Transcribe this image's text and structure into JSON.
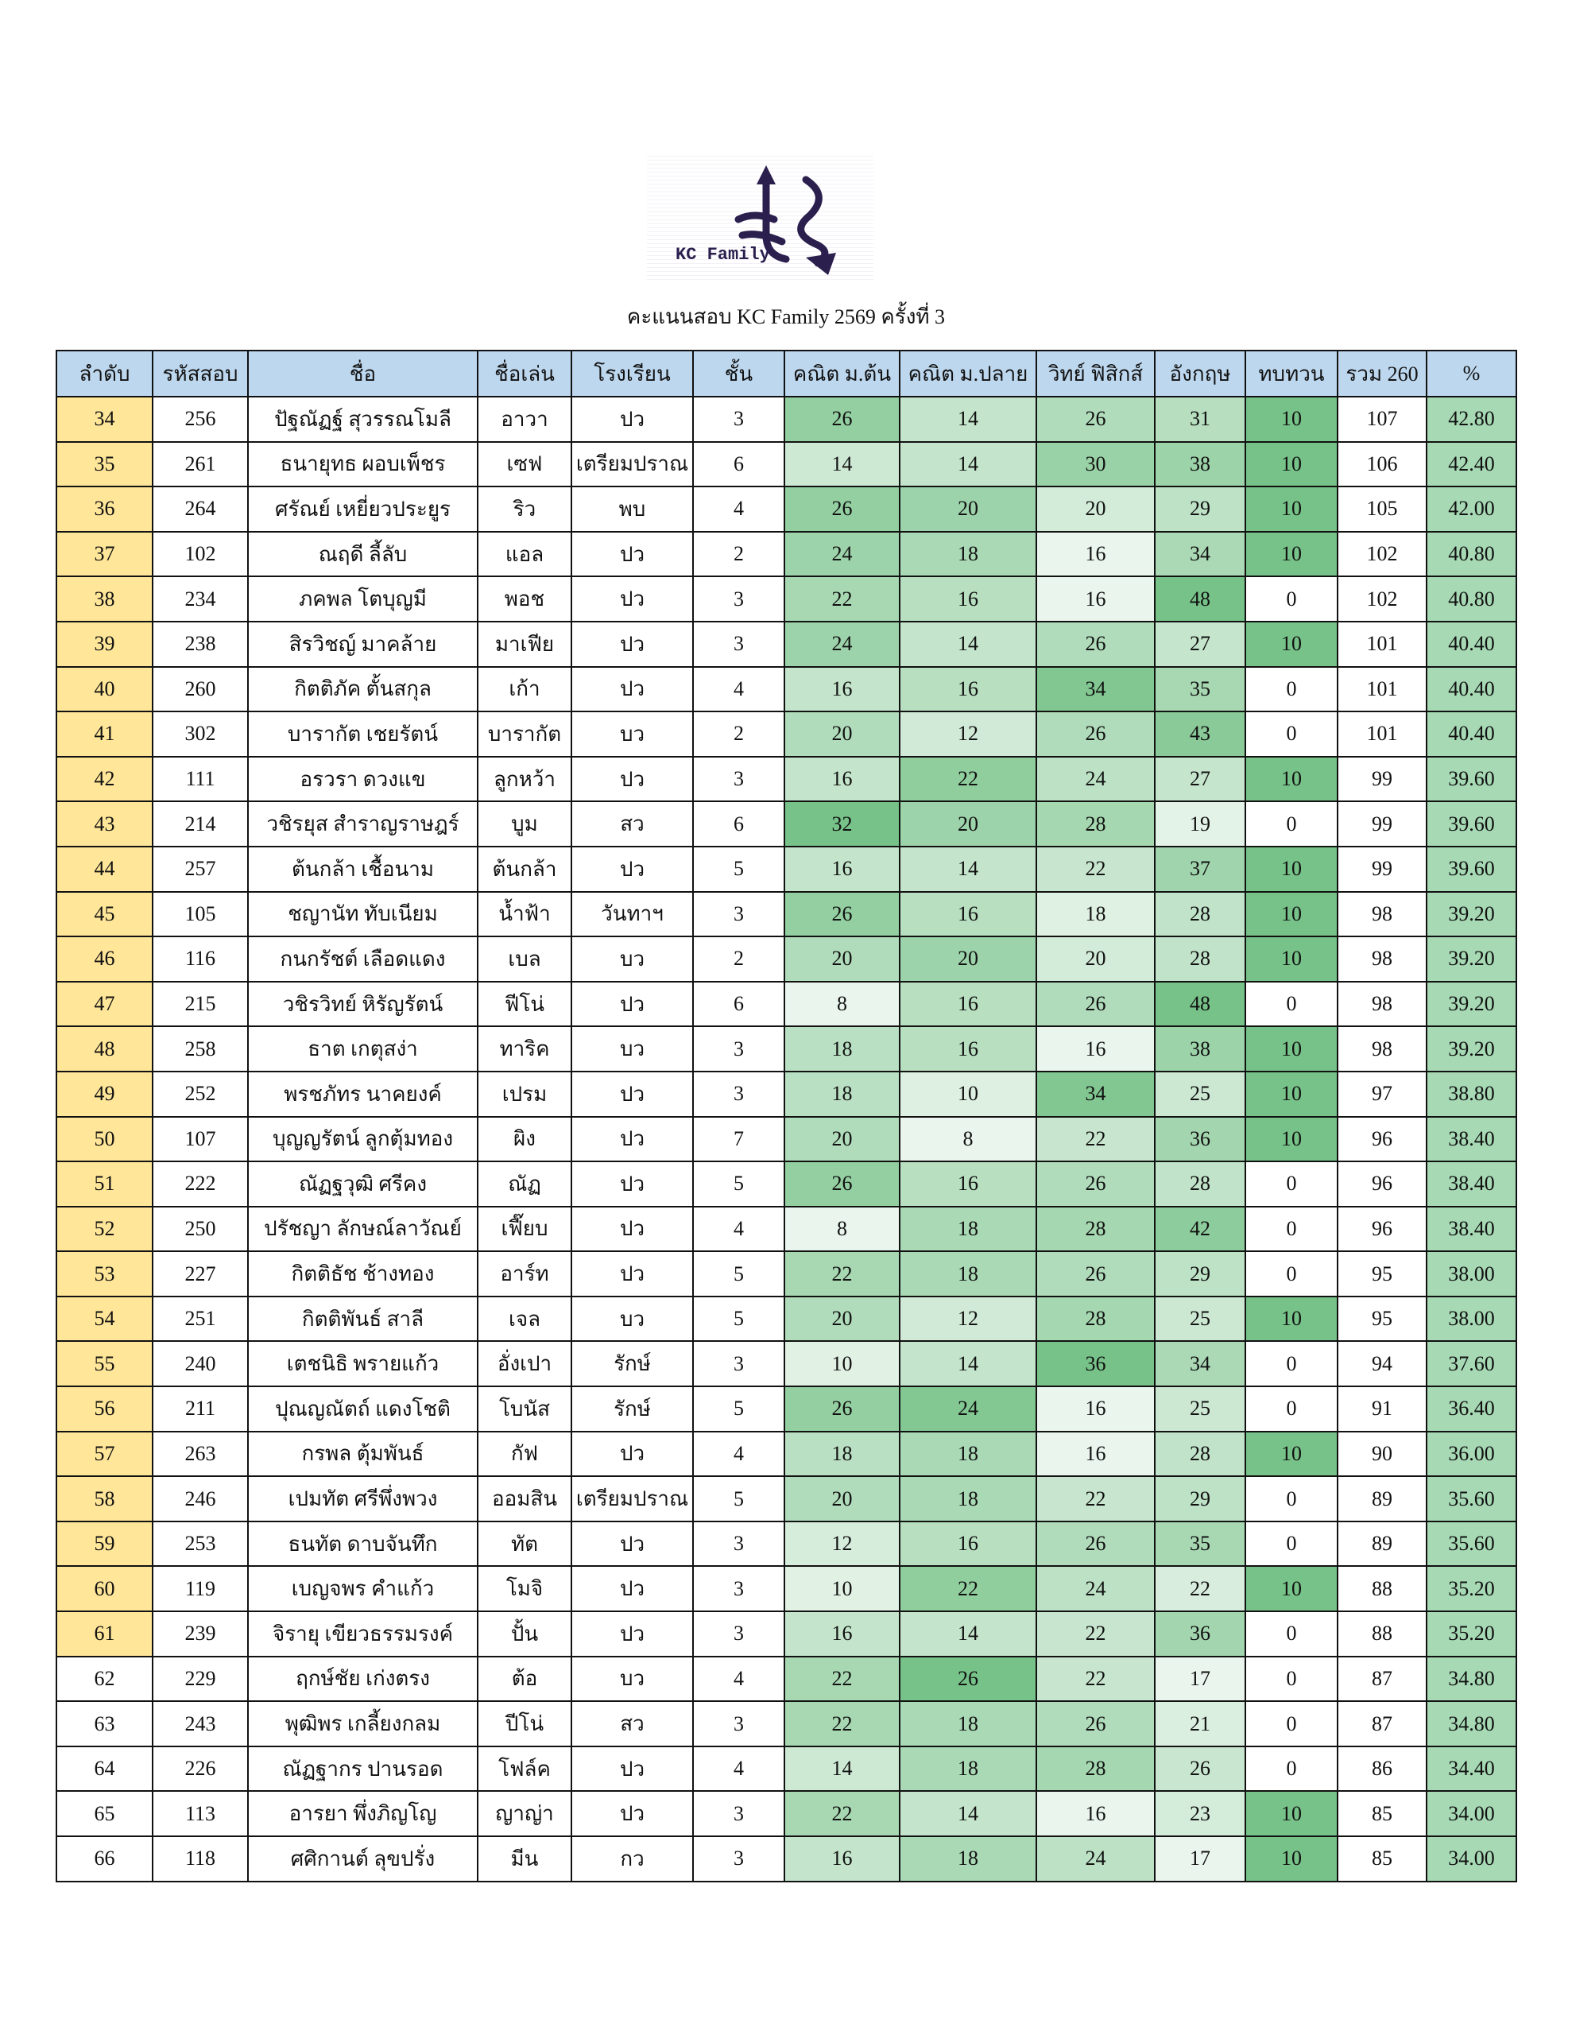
{
  "logo": {
    "text": "KC Family",
    "color": "#2b1f4e"
  },
  "title": "คะแนนสอบ KC Family 2569 ครั้งที่ 3",
  "colors": {
    "header": "#bdd7ee",
    "rank_highlight": "#ffe699",
    "scale_low": "#ffffff",
    "scale_high": "#76c288",
    "percent": "#a6d9b4"
  },
  "columns": [
    "ลำดับ",
    "รหัสสอบ",
    "ชื่อ",
    "ชื่อเล่น",
    "โรงเรียน",
    "ชั้น",
    "คณิต ม.ต้น",
    "คณิต ม.ปลาย",
    "วิทย์ ฟิสิกส์",
    "อังกฤษ",
    "ทบทวน",
    "รวม 260",
    "%"
  ],
  "rows": [
    {
      "h": true,
      "c": [
        "34",
        "256",
        "ปัฐณัฏฐ์ สุวรรณโมลี",
        "อาวา",
        "ปว",
        "3",
        "26",
        "14",
        "26",
        "31",
        "10",
        "107",
        "42.80"
      ]
    },
    {
      "h": true,
      "c": [
        "35",
        "261",
        "ธนายุทธ ผอบเพ็ชร",
        "เซฟ",
        "เตรียมปราณ",
        "6",
        "14",
        "14",
        "30",
        "38",
        "10",
        "106",
        "42.40"
      ]
    },
    {
      "h": true,
      "c": [
        "36",
        "264",
        "ศรัณย์ เหยี่ยวประยูร",
        "ริว",
        "พบ",
        "4",
        "26",
        "20",
        "20",
        "29",
        "10",
        "105",
        "42.00"
      ]
    },
    {
      "h": true,
      "c": [
        "37",
        "102",
        "ณฤดี ลี้ลับ",
        "แอล",
        "ปว",
        "2",
        "24",
        "18",
        "16",
        "34",
        "10",
        "102",
        "40.80"
      ]
    },
    {
      "h": true,
      "c": [
        "38",
        "234",
        "ภคพล โตบุญมี",
        "พอช",
        "ปว",
        "3",
        "22",
        "16",
        "16",
        "48",
        "0",
        "102",
        "40.80"
      ]
    },
    {
      "h": true,
      "c": [
        "39",
        "238",
        "สิรวิชญ์ มาคล้าย",
        "มาเฟีย",
        "ปว",
        "3",
        "24",
        "14",
        "26",
        "27",
        "10",
        "101",
        "40.40"
      ]
    },
    {
      "h": true,
      "c": [
        "40",
        "260",
        "กิตติภัค ตั้นสกุล",
        "เก้า",
        "ปว",
        "4",
        "16",
        "16",
        "34",
        "35",
        "0",
        "101",
        "40.40"
      ]
    },
    {
      "h": true,
      "c": [
        "41",
        "302",
        "บารากัต เชยรัตน์",
        "บารากัต",
        "บว",
        "2",
        "20",
        "12",
        "26",
        "43",
        "0",
        "101",
        "40.40"
      ]
    },
    {
      "h": true,
      "c": [
        "42",
        "111",
        "อรวรา ดวงแข",
        "ลูกหว้า",
        "ปว",
        "3",
        "16",
        "22",
        "24",
        "27",
        "10",
        "99",
        "39.60"
      ]
    },
    {
      "h": true,
      "c": [
        "43",
        "214",
        "วชิรยุส สำราญราษฎร์",
        "บูม",
        "สว",
        "6",
        "32",
        "20",
        "28",
        "19",
        "0",
        "99",
        "39.60"
      ]
    },
    {
      "h": true,
      "c": [
        "44",
        "257",
        "ต้นกล้า เชื้อนาม",
        "ต้นกล้า",
        "ปว",
        "5",
        "16",
        "14",
        "22",
        "37",
        "10",
        "99",
        "39.60"
      ]
    },
    {
      "h": true,
      "c": [
        "45",
        "105",
        "ชญานัท ทับเนียม",
        "น้ำฟ้า",
        "วันทาฯ",
        "3",
        "26",
        "16",
        "18",
        "28",
        "10",
        "98",
        "39.20"
      ]
    },
    {
      "h": true,
      "c": [
        "46",
        "116",
        "กนกรัชต์ เลือดแดง",
        "เบล",
        "บว",
        "2",
        "20",
        "20",
        "20",
        "28",
        "10",
        "98",
        "39.20"
      ]
    },
    {
      "h": true,
      "c": [
        "47",
        "215",
        "วชิรวิทย์ หิรัญรัตน์",
        "ฟีโน่",
        "ปว",
        "6",
        "8",
        "16",
        "26",
        "48",
        "0",
        "98",
        "39.20"
      ]
    },
    {
      "h": true,
      "c": [
        "48",
        "258",
        "ธาต เกตุสง่า",
        "ทาริค",
        "บว",
        "3",
        "18",
        "16",
        "16",
        "38",
        "10",
        "98",
        "39.20"
      ]
    },
    {
      "h": true,
      "c": [
        "49",
        "252",
        "พรชภัทร นาคยงค์",
        "เปรม",
        "ปว",
        "3",
        "18",
        "10",
        "34",
        "25",
        "10",
        "97",
        "38.80"
      ]
    },
    {
      "h": true,
      "c": [
        "50",
        "107",
        "บุญญรัตน์ ลูกตุ้มทอง",
        "ผิง",
        "ปว",
        "7",
        "20",
        "8",
        "22",
        "36",
        "10",
        "96",
        "38.40"
      ]
    },
    {
      "h": true,
      "c": [
        "51",
        "222",
        "ณัฏฐวุฒิ ศรีคง",
        "ณัฏ",
        "ปว",
        "5",
        "26",
        "16",
        "26",
        "28",
        "0",
        "96",
        "38.40"
      ]
    },
    {
      "h": true,
      "c": [
        "52",
        "250",
        "ปรัชญา ลักษณ์ลาวัณย์",
        "เฟี๊ยบ",
        "ปว",
        "4",
        "8",
        "18",
        "28",
        "42",
        "0",
        "96",
        "38.40"
      ]
    },
    {
      "h": true,
      "c": [
        "53",
        "227",
        "กิตติธัช ช้างทอง",
        "อาร์ท",
        "ปว",
        "5",
        "22",
        "18",
        "26",
        "29",
        "0",
        "95",
        "38.00"
      ]
    },
    {
      "h": true,
      "c": [
        "54",
        "251",
        "กิตติพันธ์ สาลี",
        "เจล",
        "บว",
        "5",
        "20",
        "12",
        "28",
        "25",
        "10",
        "95",
        "38.00"
      ]
    },
    {
      "h": true,
      "c": [
        "55",
        "240",
        "เตชนิธิ พรายแก้ว",
        "อั่งเปา",
        "รักษ์",
        "3",
        "10",
        "14",
        "36",
        "34",
        "0",
        "94",
        "37.60"
      ]
    },
    {
      "h": true,
      "c": [
        "56",
        "211",
        "ปุณญณัตถ์ แดงโชติ",
        "โบนัส",
        "รักษ์",
        "5",
        "26",
        "24",
        "16",
        "25",
        "0",
        "91",
        "36.40"
      ]
    },
    {
      "h": true,
      "c": [
        "57",
        "263",
        "กรพล ตุ้มพันธ์",
        "กัฟ",
        "ปว",
        "4",
        "18",
        "18",
        "16",
        "28",
        "10",
        "90",
        "36.00"
      ]
    },
    {
      "h": true,
      "c": [
        "58",
        "246",
        "เปมทัต ศรีพึ่งพวง",
        "ออมสิน",
        "เตรียมปราณ",
        "5",
        "20",
        "18",
        "22",
        "29",
        "0",
        "89",
        "35.60"
      ]
    },
    {
      "h": true,
      "c": [
        "59",
        "253",
        "ธนทัต ดาบจันทึก",
        "ทัต",
        "ปว",
        "3",
        "12",
        "16",
        "26",
        "35",
        "0",
        "89",
        "35.60"
      ]
    },
    {
      "h": true,
      "c": [
        "60",
        "119",
        "เบญจพร คำแก้ว",
        "โมจิ",
        "ปว",
        "3",
        "10",
        "22",
        "24",
        "22",
        "10",
        "88",
        "35.20"
      ]
    },
    {
      "h": true,
      "c": [
        "61",
        "239",
        "จิรายุ เขียวธรรมรงค์",
        "ปั้น",
        "ปว",
        "3",
        "16",
        "14",
        "22",
        "36",
        "0",
        "88",
        "35.20"
      ]
    },
    {
      "h": false,
      "c": [
        "62",
        "229",
        "ฤกษ์ชัย เก่งตรง",
        "ต้อ",
        "บว",
        "4",
        "22",
        "26",
        "22",
        "17",
        "0",
        "87",
        "34.80"
      ]
    },
    {
      "h": false,
      "c": [
        "63",
        "243",
        "พุฒิพร เกลี้ยงกลม",
        "ปีโน่",
        "สว",
        "3",
        "22",
        "18",
        "26",
        "21",
        "0",
        "87",
        "34.80"
      ]
    },
    {
      "h": false,
      "c": [
        "64",
        "226",
        "ณัฏฐากร ปานรอด",
        "โฟล์ค",
        "ปว",
        "4",
        "14",
        "18",
        "28",
        "26",
        "0",
        "86",
        "34.40"
      ]
    },
    {
      "h": false,
      "c": [
        "65",
        "113",
        "อารยา พึ่งภิญโญ",
        "ญาญ่า",
        "ปว",
        "3",
        "22",
        "14",
        "16",
        "23",
        "10",
        "85",
        "34.00"
      ]
    },
    {
      "h": false,
      "c": [
        "66",
        "118",
        "ศศิกานต์ ลุขปรั่ง",
        "มีน",
        "กว",
        "3",
        "16",
        "18",
        "24",
        "17",
        "10",
        "85",
        "34.00"
      ]
    }
  ]
}
